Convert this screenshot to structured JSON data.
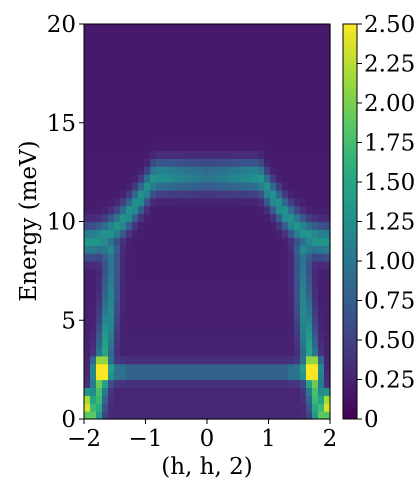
{
  "chart_data": {
    "type": "heatmap",
    "title": "",
    "xlabel": "(h, h, 2)",
    "ylabel": "Energy (meV)",
    "xlim": [
      -2,
      2
    ],
    "ylim": [
      0,
      20
    ],
    "x_ticks": [
      {
        "value": -2,
        "label": "−2"
      },
      {
        "value": -1,
        "label": "−1"
      },
      {
        "value": 0,
        "label": "0"
      },
      {
        "value": 1,
        "label": "1"
      },
      {
        "value": 2,
        "label": "2"
      }
    ],
    "y_ticks": [
      {
        "value": 0,
        "label": "0"
      },
      {
        "value": 5,
        "label": "5"
      },
      {
        "value": 10,
        "label": "10"
      },
      {
        "value": 15,
        "label": "15"
      },
      {
        "value": 20,
        "label": "20"
      }
    ],
    "colorbar": {
      "colormap": "viridis",
      "vmin": 0,
      "vmax": 2.5,
      "ticks": [
        {
          "value": 0,
          "label": "0"
        },
        {
          "value": 0.25,
          "label": "0.25"
        },
        {
          "value": 0.5,
          "label": "0.50"
        },
        {
          "value": 0.75,
          "label": "0.75"
        },
        {
          "value": 1.0,
          "label": "1.00"
        },
        {
          "value": 1.25,
          "label": "1.25"
        },
        {
          "value": 1.5,
          "label": "1.50"
        },
        {
          "value": 1.75,
          "label": "1.75"
        },
        {
          "value": 2.0,
          "label": "2.00"
        },
        {
          "value": 2.25,
          "label": "2.25"
        },
        {
          "value": 2.5,
          "label": "2.50"
        }
      ]
    },
    "grid": false,
    "model": {
      "description_of_bands": "upper dispersive band, lower flat band, steep side branches",
      "background_level": 0.18,
      "upper_band_energy_at_center": 12.3,
      "upper_band_energy_at_edge": 9.0,
      "upper_band_intensity": 1.1,
      "lower_band_energy": 2.4,
      "lower_band_intensity": 0.65,
      "side_branch_energy_range": [
        0.3,
        9.0
      ],
      "side_branch_intensity": 1.6,
      "x_bins": 41,
      "y_bins": 50
    }
  }
}
